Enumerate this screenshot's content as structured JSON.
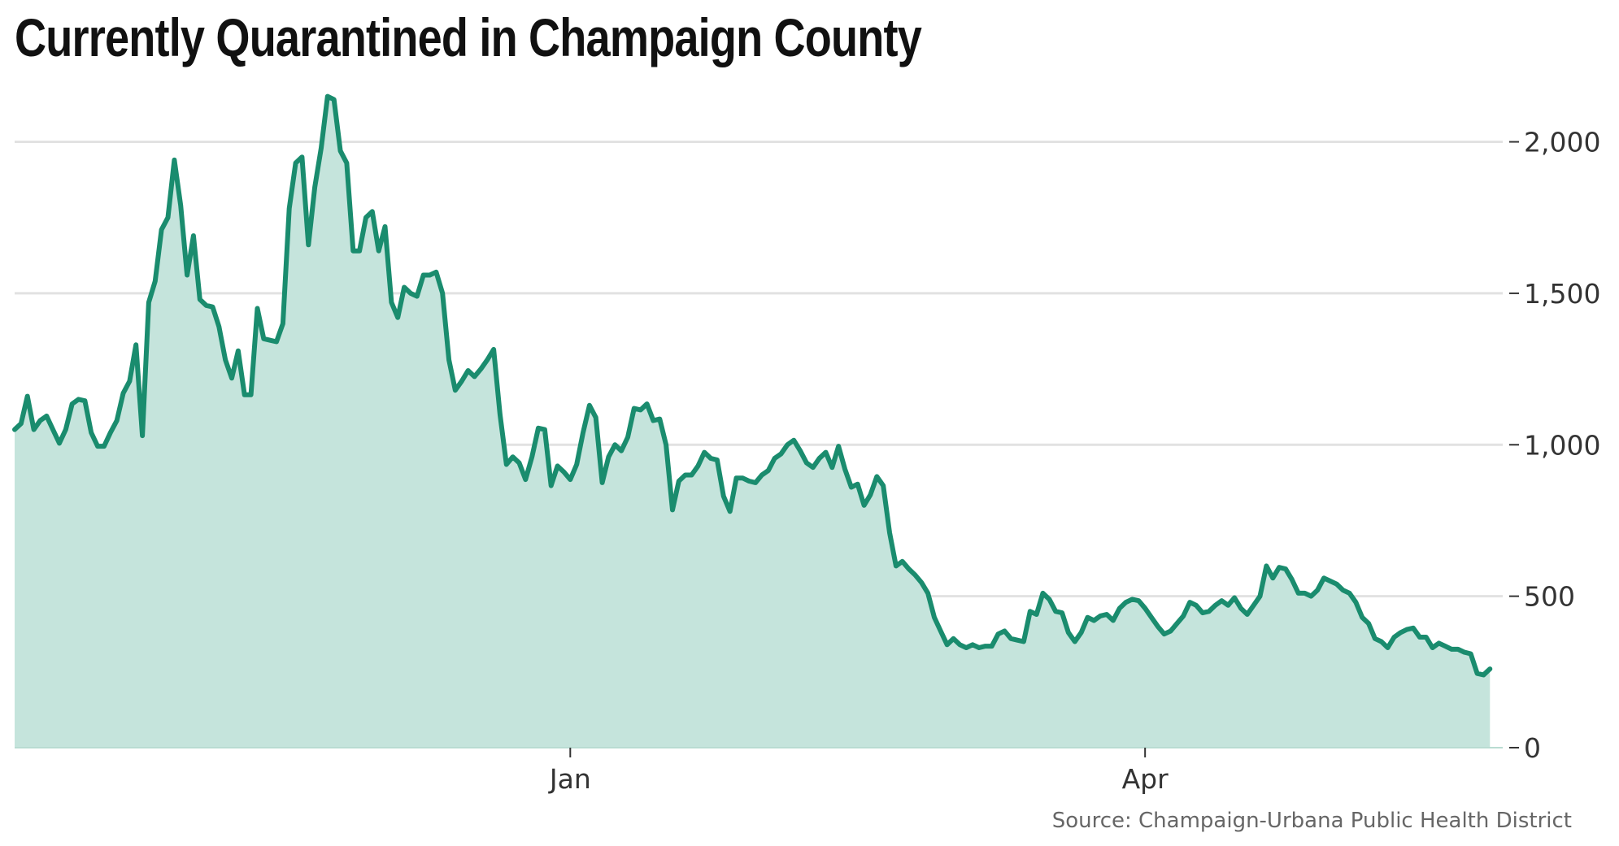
{
  "chart_data": {
    "type": "area",
    "title": "Currently Quarantined in Champaign County",
    "source": "Source: Champaign-Urbana Public Health District",
    "y_range": [
      0,
      2200
    ],
    "y_ticks": [
      {
        "value": 0,
        "label": "0"
      },
      {
        "value": 500,
        "label": "500"
      },
      {
        "value": 1000,
        "label": "1,000"
      },
      {
        "value": 1500,
        "label": "1,500"
      },
      {
        "value": 2000,
        "label": "2,000"
      }
    ],
    "x_ticks": [
      {
        "day": 87,
        "label": "Jan"
      },
      {
        "day": 177,
        "label": "Apr"
      }
    ],
    "x_range": [
      0,
      233
    ],
    "y_axis_position": "right",
    "grid": true,
    "line_color": "#1a8c6e",
    "fill_color": "#c5e4dc",
    "values": [
      1050,
      1070,
      1160,
      1050,
      1080,
      1095,
      1050,
      1005,
      1050,
      1135,
      1150,
      1145,
      1040,
      995,
      995,
      1040,
      1080,
      1170,
      1210,
      1330,
      1030,
      1470,
      1540,
      1710,
      1750,
      1940,
      1790,
      1560,
      1690,
      1480,
      1460,
      1455,
      1390,
      1280,
      1220,
      1310,
      1165,
      1165,
      1450,
      1350,
      1345,
      1340,
      1400,
      1780,
      1930,
      1950,
      1660,
      1850,
      1980,
      2150,
      2140,
      1970,
      1930,
      1640,
      1640,
      1750,
      1770,
      1640,
      1720,
      1470,
      1420,
      1520,
      1500,
      1490,
      1560,
      1560,
      1570,
      1500,
      1280,
      1180,
      1210,
      1245,
      1225,
      1250,
      1280,
      1315,
      1100,
      935,
      960,
      940,
      885,
      960,
      1055,
      1050,
      865,
      930,
      910,
      885,
      935,
      1040,
      1130,
      1090,
      875,
      960,
      1000,
      980,
      1025,
      1120,
      1115,
      1135,
      1080,
      1085,
      1000,
      785,
      880,
      900,
      900,
      930,
      975,
      955,
      950,
      830,
      780,
      890,
      890,
      880,
      875,
      900,
      915,
      955,
      970,
      1000,
      1015,
      980,
      940,
      925,
      955,
      975,
      925,
      995,
      920,
      860,
      870,
      800,
      835,
      895,
      865,
      710,
      600,
      615,
      590,
      570,
      545,
      510,
      430,
      385,
      340,
      360,
      340,
      330,
      340,
      330,
      335,
      335,
      375,
      385,
      360,
      355,
      350,
      450,
      440,
      510,
      490,
      450,
      445,
      380,
      350,
      380,
      430,
      420,
      435,
      440,
      420,
      460,
      480,
      490,
      485,
      460,
      430,
      400,
      375,
      385,
      410,
      435,
      480,
      470,
      445,
      450,
      470,
      485,
      470,
      495,
      460,
      440,
      470,
      500,
      600,
      560,
      595,
      590,
      555,
      510,
      510,
      500,
      520,
      560,
      550,
      540,
      520,
      510,
      480,
      430,
      410,
      360,
      350,
      330,
      365,
      380,
      390,
      395,
      365,
      365,
      330,
      345,
      335,
      325,
      325,
      315,
      310,
      245,
      240,
      260
    ]
  }
}
